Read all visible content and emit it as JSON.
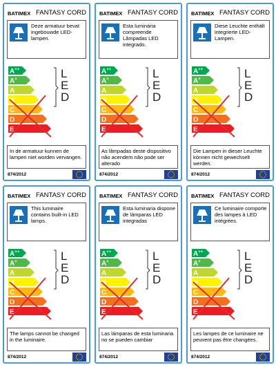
{
  "brand": "BATIMEX",
  "product": "FANTASY CORD",
  "regulation": "874/2012",
  "led": [
    "L",
    "E",
    "D"
  ],
  "classes": [
    {
      "letter": "A",
      "sup": "++",
      "color": "#00a650"
    },
    {
      "letter": "A",
      "sup": "+",
      "color": "#50b848"
    },
    {
      "letter": "A",
      "color": "#bed630"
    },
    {
      "letter": "B",
      "color": "#fff200"
    },
    {
      "letter": "C",
      "color": "#fdb913"
    },
    {
      "letter": "D",
      "color": "#f37021"
    },
    {
      "letter": "E",
      "color": "#ed1c24"
    }
  ],
  "labels": [
    {
      "top": "Deze armatuur bevat ingebouwde LED-lampen.",
      "bottom": "In de armatuur kunnen de lampen niet worden vervangen."
    },
    {
      "top": "Esta luminária compreende Lâmpadas LED integrado.",
      "bottom": "As lâmpadas deste dispositivo não acendem não pode ser alterado"
    },
    {
      "top": "Diese Leuchte enthält integrierte LED-Lampen.",
      "bottom": "Die Lampen in dieser Leuchte können nicht gewechselt werden."
    },
    {
      "top": "This luminaire contains built-in LED lamps.",
      "bottom": "The lamps cannot be changed in the luminaire."
    },
    {
      "top": "Esta luminaria dispone de lámparas LED integradas",
      "bottom": "Las lámparas de esta luminaria no se pueden cambiar"
    },
    {
      "top": "Ce luminaire comporte des lampes à LED intégrées.",
      "bottom": "Les lampes de ce luminaire ne peuvent pas être changées."
    }
  ]
}
